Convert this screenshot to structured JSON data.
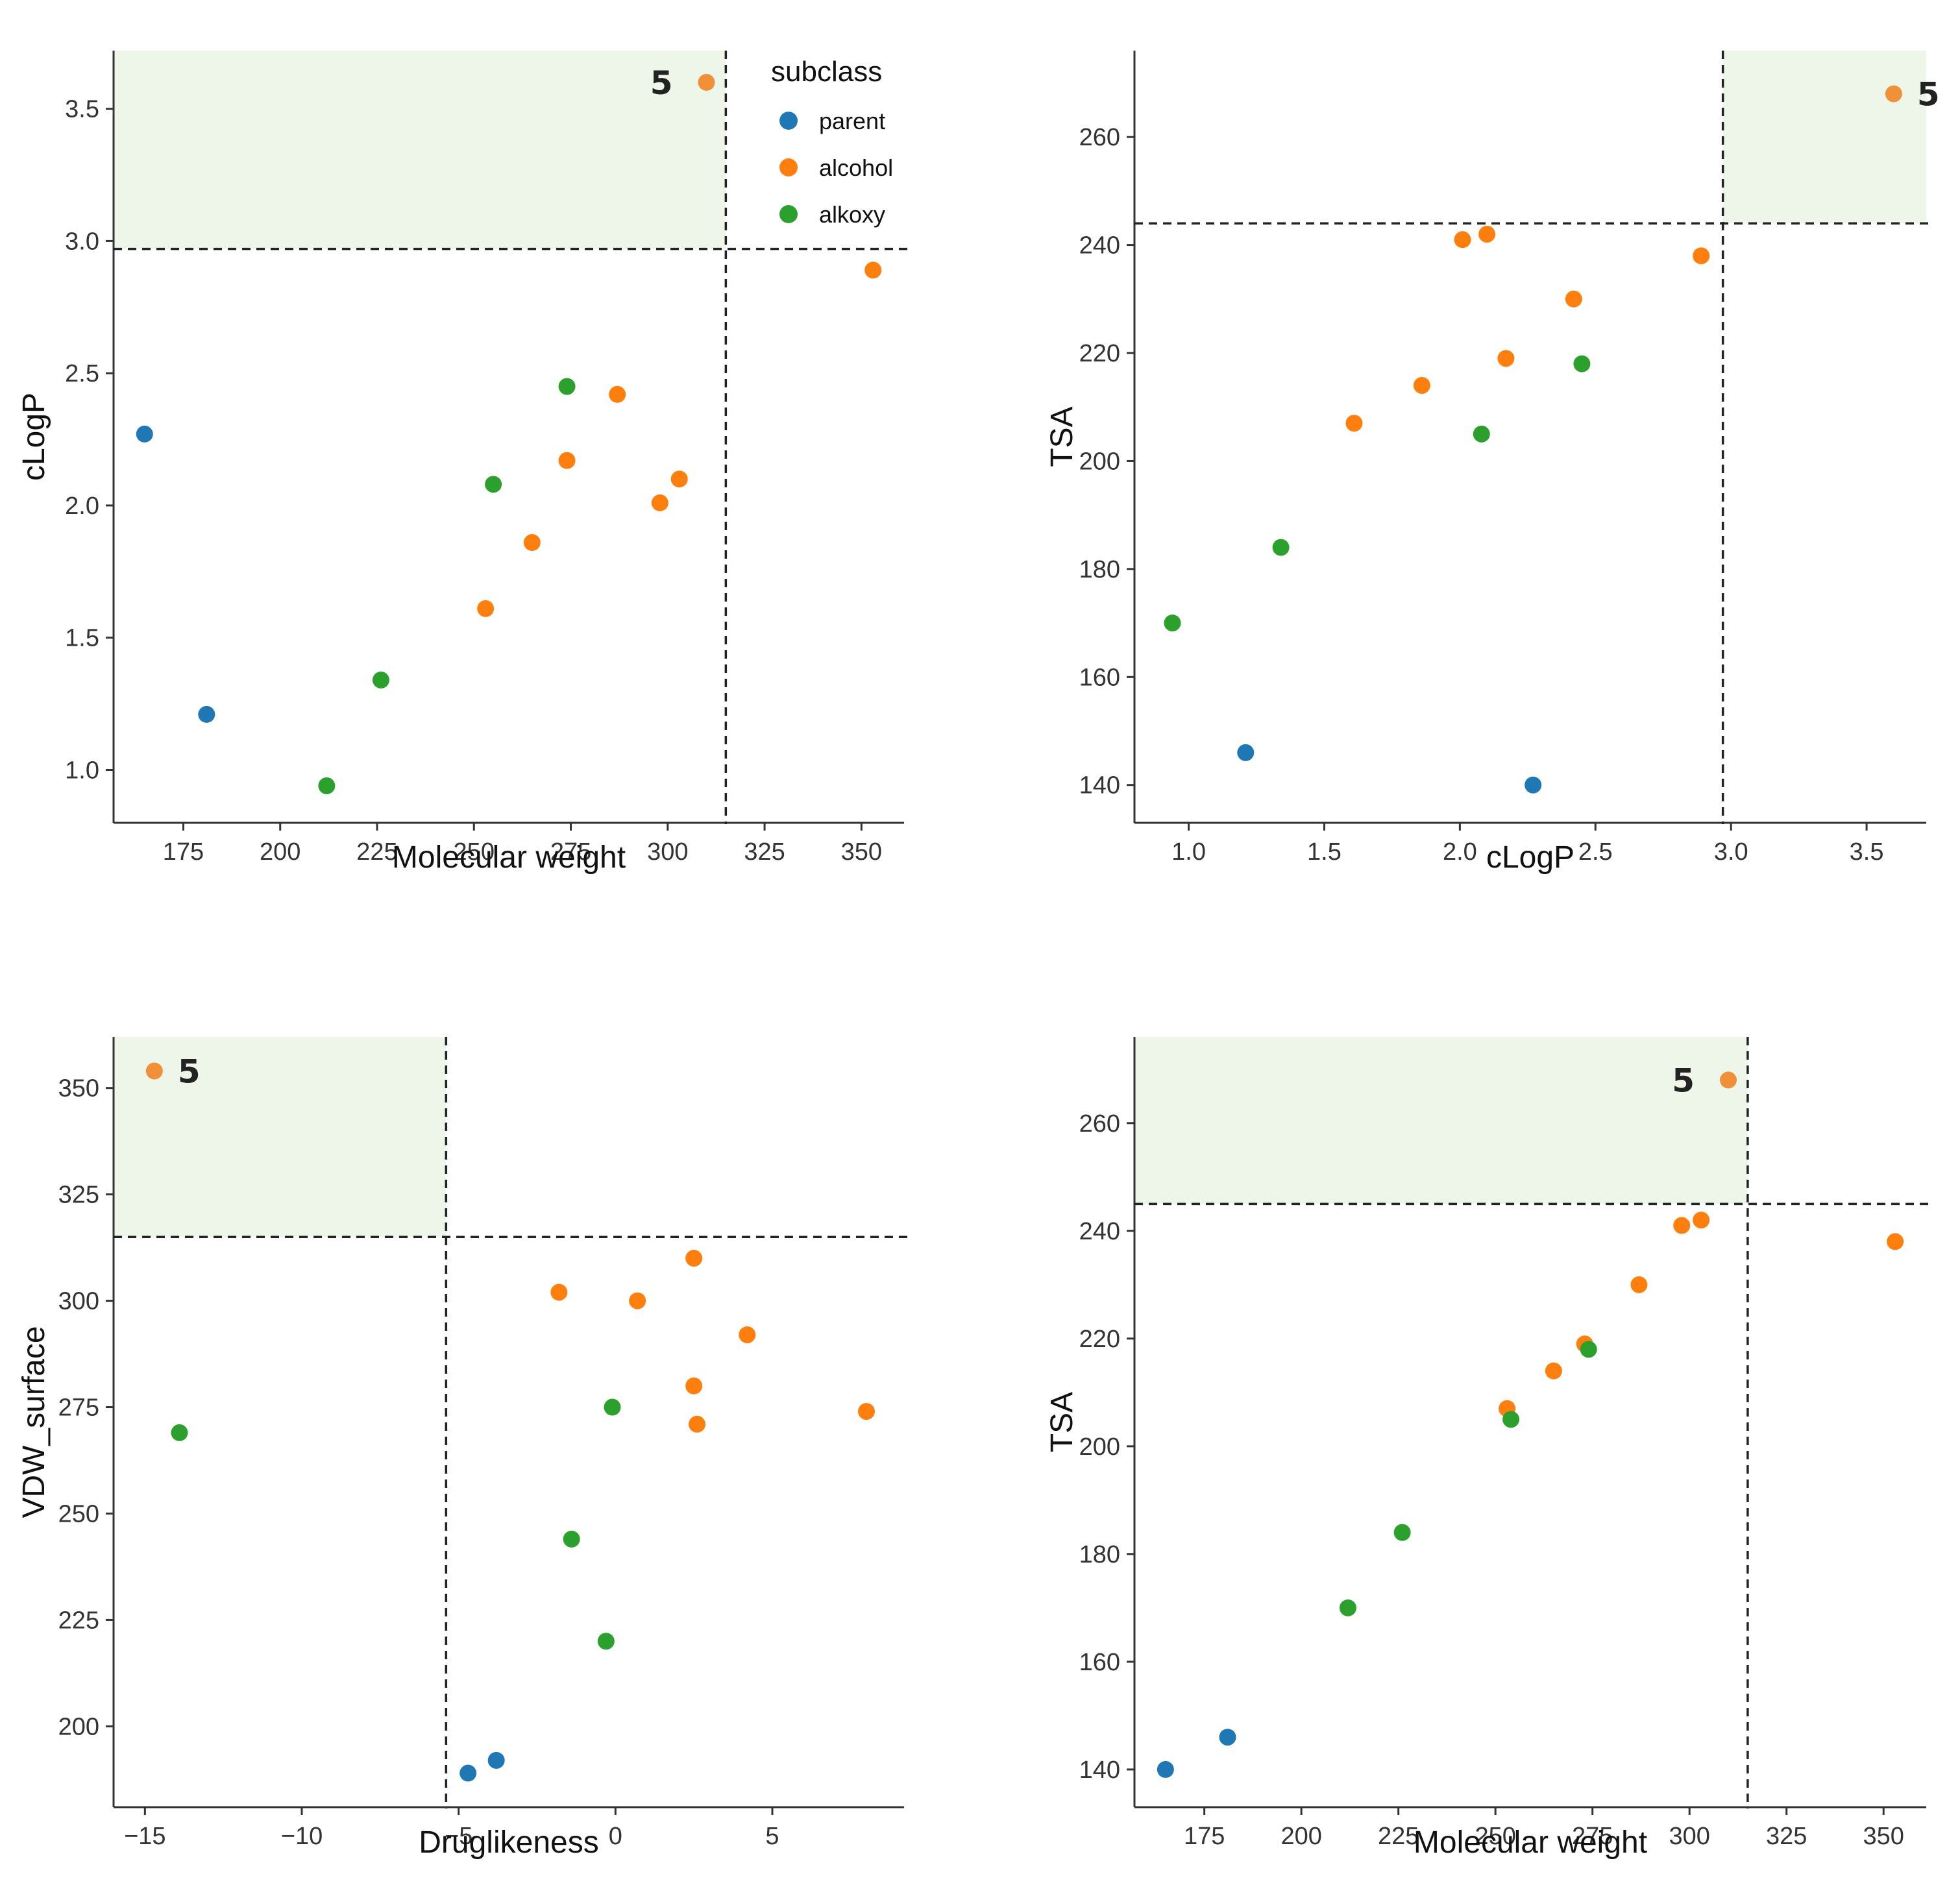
{
  "legend": {
    "title": "subclass",
    "items": [
      {
        "label": "parent",
        "color": "#1f77b4"
      },
      {
        "label": "alcohol",
        "color": "#ff7f0e"
      },
      {
        "label": "alkoxy",
        "color": "#2ca02c"
      }
    ]
  },
  "colors": {
    "highlight_fill": "#eef6e9",
    "axis": "#333333",
    "threshold_line": "#222222",
    "label5_point": "#f0913a"
  },
  "chart_data": [
    {
      "id": "mw-clogp",
      "type": "scatter",
      "title": "",
      "xlabel": "Molecular weight",
      "ylabel": "cLogP",
      "xlim": [
        157,
        361
      ],
      "ylim": [
        0.8,
        3.72
      ],
      "xticks": [
        175,
        200,
        225,
        250,
        275,
        300,
        325,
        350
      ],
      "yticks": [
        1.0,
        1.5,
        2.0,
        2.5,
        3.0,
        3.5
      ],
      "yticks_decimals": 1,
      "threshold": {
        "x": 315,
        "y": 2.97
      },
      "highlight": {
        "x": [
          157,
          315
        ],
        "y": [
          2.97,
          3.72
        ]
      },
      "series": [
        {
          "name": "parent",
          "x": [
            165,
            181
          ],
          "y": [
            2.27,
            1.21
          ]
        },
        {
          "name": "alcohol",
          "x": [
            253,
            265,
            274,
            287,
            298,
            303,
            353
          ],
          "y": [
            1.61,
            1.86,
            2.17,
            2.42,
            2.01,
            2.1,
            2.89
          ]
        },
        {
          "name": "alkoxy",
          "x": [
            212,
            226,
            255,
            274
          ],
          "y": [
            0.94,
            1.34,
            2.08,
            2.45
          ]
        }
      ],
      "labeled_point": {
        "label": "5",
        "x": 310,
        "y": 3.6
      }
    },
    {
      "id": "clogp-tsa",
      "type": "scatter",
      "title": "",
      "xlabel": "cLogP",
      "ylabel": "TSA",
      "xlim": [
        0.8,
        3.72
      ],
      "ylim": [
        133,
        276
      ],
      "xticks": [
        1.0,
        1.5,
        2.0,
        2.5,
        3.0,
        3.5
      ],
      "yticks": [
        140,
        160,
        180,
        200,
        220,
        240,
        260
      ],
      "xticks_decimals": 1,
      "threshold": {
        "x": 2.97,
        "y": 244
      },
      "highlight": {
        "x": [
          2.97,
          3.72
        ],
        "y": [
          244,
          276
        ]
      },
      "series": [
        {
          "name": "parent",
          "x": [
            1.21,
            2.27
          ],
          "y": [
            146,
            140
          ]
        },
        {
          "name": "alcohol",
          "x": [
            1.61,
            1.86,
            2.01,
            2.1,
            2.17,
            2.42,
            2.89
          ],
          "y": [
            207,
            214,
            241,
            242,
            219,
            230,
            238
          ]
        },
        {
          "name": "alkoxy",
          "x": [
            0.94,
            1.34,
            2.08,
            2.45
          ],
          "y": [
            170,
            184,
            205,
            218
          ]
        }
      ],
      "labeled_point": {
        "label": "5",
        "x": 3.6,
        "y": 268
      }
    },
    {
      "id": "druglikeness-vdw",
      "type": "scatter",
      "title": "",
      "xlabel": "Druglikeness",
      "ylabel": "VDW_surface",
      "xlim": [
        -16,
        9.2
      ],
      "ylim": [
        181,
        362
      ],
      "xticks": [
        -15,
        -10,
        -5,
        0,
        5
      ],
      "yticks": [
        200,
        225,
        250,
        275,
        300,
        325,
        350
      ],
      "threshold": {
        "x": -5.4,
        "y": 315
      },
      "highlight": {
        "x": [
          -16,
          -5.4
        ],
        "y": [
          315,
          362
        ]
      },
      "series": [
        {
          "name": "parent",
          "x": [
            -4.7,
            -3.8
          ],
          "y": [
            189,
            192
          ]
        },
        {
          "name": "alcohol",
          "x": [
            -1.8,
            0.7,
            2.5,
            2.5,
            2.6,
            4.2,
            8.0
          ],
          "y": [
            302,
            300,
            310,
            280,
            271,
            292,
            274
          ]
        },
        {
          "name": "alkoxy",
          "x": [
            -13.9,
            -1.4,
            -0.3,
            -0.1
          ],
          "y": [
            269,
            244,
            220,
            275
          ]
        }
      ],
      "labeled_point": {
        "label": "5",
        "x": -14.7,
        "y": 354
      }
    },
    {
      "id": "mw-tsa",
      "type": "scatter",
      "title": "",
      "xlabel": "Molecular weight",
      "ylabel": "TSA",
      "xlim": [
        157,
        361
      ],
      "ylim": [
        133,
        276
      ],
      "xticks": [
        175,
        200,
        225,
        250,
        275,
        300,
        325,
        350
      ],
      "yticks": [
        140,
        160,
        180,
        200,
        220,
        240,
        260
      ],
      "threshold": {
        "x": 315,
        "y": 245
      },
      "highlight": {
        "x": [
          157,
          315
        ],
        "y": [
          245,
          276
        ]
      },
      "series": [
        {
          "name": "parent",
          "x": [
            165,
            181
          ],
          "y": [
            140,
            146
          ]
        },
        {
          "name": "alcohol",
          "x": [
            253,
            265,
            273,
            287,
            298,
            303,
            353
          ],
          "y": [
            207,
            214,
            219,
            230,
            241,
            242,
            238
          ]
        },
        {
          "name": "alkoxy",
          "x": [
            212,
            226,
            254,
            274
          ],
          "y": [
            170,
            184,
            205,
            218
          ]
        }
      ],
      "labeled_point": {
        "label": "5",
        "x": 310,
        "y": 268
      }
    }
  ]
}
